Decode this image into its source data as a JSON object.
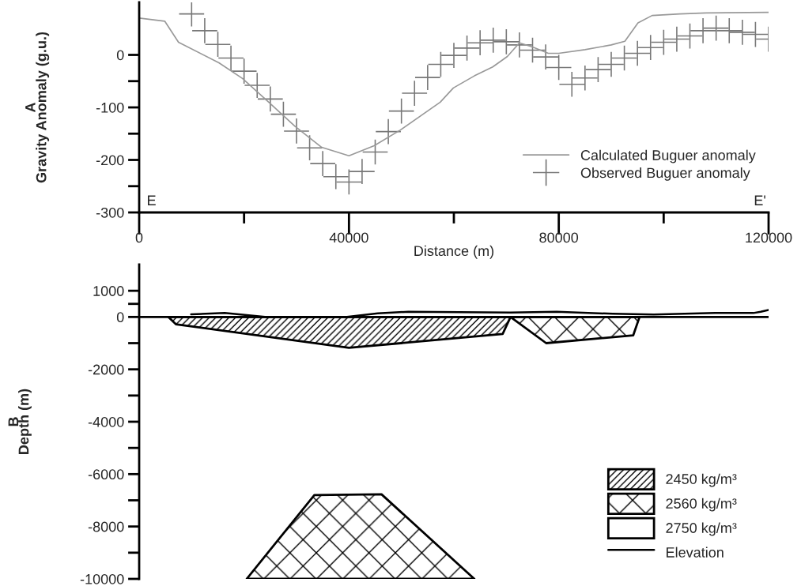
{
  "chart_data": [
    {
      "type": "line",
      "title": "A",
      "ylabel": "Gravity Anomaly (g.u.)",
      "xlabel": "Distance (m)",
      "xlim": [
        0,
        120000
      ],
      "ylim": [
        -300,
        100
      ],
      "xticks": [
        0,
        {
          "value": 20000,
          "label": null
        },
        40000,
        {
          "value": 60000,
          "label": null
        },
        80000,
        {
          "value": 100000,
          "label": null
        },
        120000
      ],
      "yticks": [
        0,
        {
          "value": -50,
          "label": null
        },
        -100,
        {
          "value": -150,
          "label": null
        },
        -200,
        {
          "value": -250,
          "label": null
        },
        -300
      ],
      "grid": false,
      "legend": "bottom right",
      "annotations": [
        "E",
        "E'"
      ],
      "series": [
        {
          "name": "Calculated Buguer anomaly",
          "color": "#999999",
          "x": [
            0,
            4900,
            7500,
            15200,
            19700,
            24700,
            29700,
            34800,
            40000,
            44800,
            49800,
            57400,
            59900,
            63900,
            67400,
            70200,
            72500,
            75000,
            78000,
            80000,
            85000,
            90000,
            92600,
            95100,
            97800,
            103100,
            108100,
            120000
          ],
          "values": [
            70,
            64,
            24,
            -15,
            -45,
            -90,
            -136,
            -176,
            -192,
            -173,
            -143,
            -90,
            -63,
            -40,
            -23,
            -3,
            23,
            15,
            3,
            3,
            10,
            19,
            26,
            61,
            75,
            78,
            80,
            81
          ]
        },
        {
          "name": "Observed Buguer anomaly",
          "type": "scatter",
          "color": "#777777",
          "marker": "cross",
          "x": [
            10000,
            12500,
            15000,
            17500,
            20000,
            22500,
            25000,
            27500,
            30000,
            32500,
            35000,
            37500,
            40000,
            42500,
            45000,
            47500,
            50000,
            52500,
            55000,
            57500,
            60000,
            62500,
            65000,
            67500,
            70000,
            72500,
            75000,
            77500,
            80000,
            82500,
            85000,
            87500,
            90000,
            92500,
            95000,
            97500,
            100000,
            102500,
            105000,
            107500,
            110000,
            112500,
            115000,
            117500,
            120000
          ],
          "values": [
            78,
            46,
            20,
            -6,
            -31,
            -58,
            -84,
            -113,
            -145,
            -177,
            -207,
            -232,
            -242,
            -222,
            -185,
            -146,
            -107,
            -73,
            -43,
            -18,
            -1,
            13,
            23,
            28,
            25,
            19,
            9,
            -4,
            -24,
            -56,
            -44,
            -28,
            -18,
            -6,
            3,
            14,
            24,
            30,
            36,
            46,
            51,
            46,
            43,
            39,
            30
          ]
        }
      ]
    },
    {
      "type": "area",
      "title": "B",
      "ylabel": "Depth (m)",
      "xlim": [
        0,
        120000
      ],
      "ylim": [
        -10000,
        2000
      ],
      "tick_labels": "y",
      "yticks": [
        1000,
        {
          "value": 500,
          "label": null
        },
        0,
        {
          "value": -1000,
          "label": null
        },
        -2000,
        {
          "value": -3000,
          "label": null
        },
        -4000,
        {
          "value": -5000,
          "label": null
        },
        -6000,
        {
          "value": -7000,
          "label": null
        },
        -8000,
        {
          "value": -9000,
          "label": null
        },
        -10000
      ],
      "grid": false,
      "legend": "right",
      "ref_lines": [
        {
          "axis": "y",
          "value": 0,
          "color": "#000000"
        }
      ],
      "series": [
        {
          "name": "2450 kg/m³",
          "color": "#000000",
          "x": [
            5550,
            7000,
            40000,
            69300,
            70800
          ],
          "values": [
            0,
            -280,
            -1180,
            -650,
            0
          ]
        },
        {
          "name": "2560 kg/m³",
          "color": "#000000",
          "x": [
            70800,
            77600,
            94200,
            95400
          ],
          "values": [
            0,
            -1000,
            -700,
            0
          ]
        },
        {
          "color": "#000000",
          "x": [
            20500,
            33400,
            46200,
            63900
          ],
          "values": [
            -10000,
            -6800,
            -6770,
            -10000
          ]
        },
        {
          "name": "2750 kg/m³",
          "color": "#ffffff"
        },
        {
          "name": "Elevation",
          "type": "line",
          "color": "#000000",
          "x": [
            9900,
            16300,
            24000,
            39600,
            45500,
            51300,
            61000,
            70800,
            79600,
            90300,
            98100,
            109800,
            117100,
            118500,
            120000
          ],
          "values": [
            100,
            150,
            0,
            0,
            140,
            200,
            180,
            170,
            200,
            120,
            90,
            150,
            150,
            200,
            270
          ]
        }
      ]
    }
  ]
}
